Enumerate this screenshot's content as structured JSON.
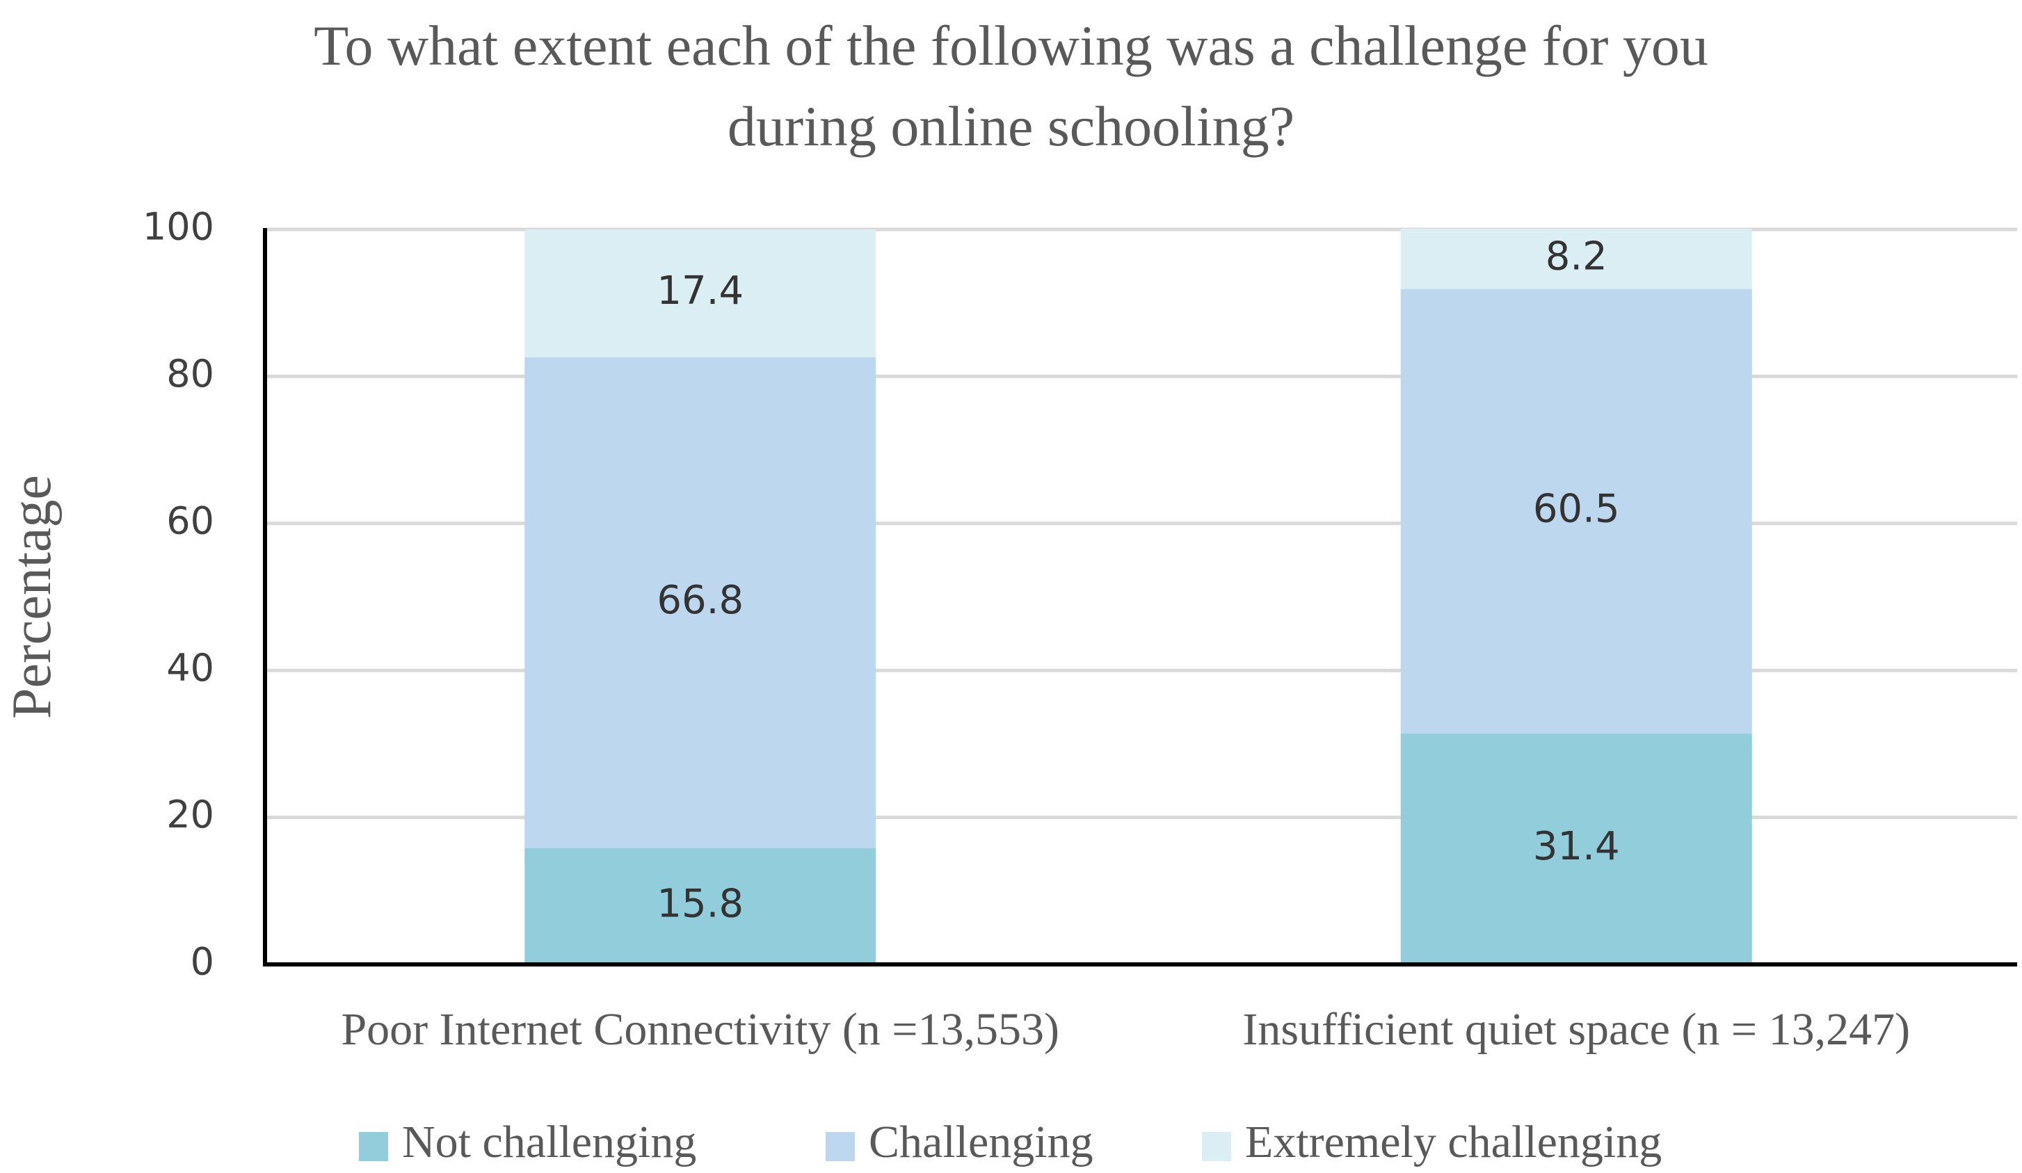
{
  "chart_data": {
    "type": "bar",
    "stacked": true,
    "title_lines": [
      "To what extent each of the following was a challenge for you",
      "during online schooling?"
    ],
    "xlabel": "",
    "ylabel": "Percentage",
    "ylim": [
      0,
      100
    ],
    "yticks": [
      0,
      20,
      40,
      60,
      80,
      100
    ],
    "grid": true,
    "legend_position": "bottom",
    "categories": [
      "Poor Internet Connectivity  (n =13,553)",
      "Insufficient quiet space  (n = 13,247)"
    ],
    "series": [
      {
        "name": "Not challenging",
        "color": "#92CDDC",
        "values": [
          15.8,
          31.4
        ]
      },
      {
        "name": "Challenging",
        "color": "#BDD7EE",
        "values": [
          66.8,
          60.5
        ]
      },
      {
        "name": "Extremely challenging",
        "color": "#DAEEF3",
        "values": [
          17.4,
          8.2
        ]
      }
    ]
  }
}
